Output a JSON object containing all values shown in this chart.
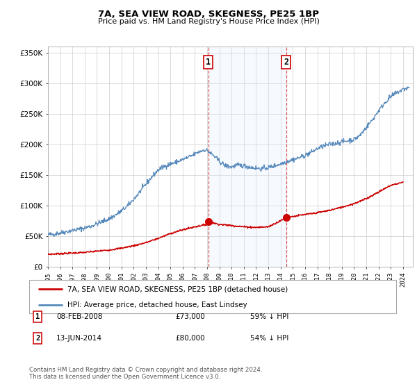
{
  "title": "7A, SEA VIEW ROAD, SKEGNESS, PE25 1BP",
  "subtitle": "Price paid vs. HM Land Registry's House Price Index (HPI)",
  "red_label": "7A, SEA VIEW ROAD, SKEGNESS, PE25 1BP (detached house)",
  "blue_label": "HPI: Average price, detached house, East Lindsey",
  "footnote1": "Contains HM Land Registry data © Crown copyright and database right 2024.",
  "footnote2": "This data is licensed under the Open Government Licence v3.0.",
  "transaction1_label": "08-FEB-2008",
  "transaction1_price": "£73,000",
  "transaction1_pct": "59% ↓ HPI",
  "transaction2_label": "13-JUN-2014",
  "transaction2_price": "£80,000",
  "transaction2_pct": "54% ↓ HPI",
  "marker1_year": 2008.1,
  "marker2_year": 2014.45,
  "marker1_price": 73000,
  "marker2_price": 80000,
  "ylim_max": 360000,
  "xlim_min": 1995,
  "xlim_max": 2024.8,
  "background_color": "#ffffff",
  "grid_color": "#cccccc",
  "red_color": "#cc0000",
  "blue_color": "#5588bb",
  "shade_color": "#ddeeff",
  "years_hpi": [
    1995,
    1995.5,
    1996,
    1996.5,
    1997,
    1997.5,
    1998,
    1998.5,
    1999,
    1999.5,
    2000,
    2000.5,
    2001,
    2001.5,
    2002,
    2002.5,
    2003,
    2003.5,
    2004,
    2004.5,
    2005,
    2005.5,
    2006,
    2006.5,
    2007,
    2007.25,
    2007.5,
    2007.75,
    2008,
    2008.5,
    2009,
    2009.5,
    2010,
    2010.5,
    2011,
    2011.5,
    2012,
    2012.5,
    2013,
    2013.5,
    2014,
    2014.5,
    2015,
    2015.5,
    2016,
    2016.5,
    2017,
    2017.5,
    2018,
    2018.5,
    2019,
    2019.5,
    2020,
    2020.5,
    2021,
    2021.5,
    2022,
    2022.5,
    2023,
    2023.5,
    2024,
    2024.5
  ],
  "hpi_values": [
    52000,
    53000,
    55000,
    57000,
    59000,
    61000,
    63000,
    66000,
    70000,
    74000,
    78000,
    84000,
    91000,
    99000,
    110000,
    122000,
    135000,
    147000,
    158000,
    164000,
    168000,
    171000,
    175000,
    179000,
    184000,
    187000,
    189000,
    191000,
    190000,
    182000,
    172000,
    165000,
    163000,
    166000,
    165000,
    163000,
    161000,
    160000,
    162000,
    165000,
    168000,
    172000,
    175000,
    178000,
    182000,
    187000,
    193000,
    197000,
    200000,
    202000,
    204000,
    206000,
    208000,
    215000,
    228000,
    240000,
    255000,
    268000,
    278000,
    285000,
    290000,
    293000
  ],
  "years_red": [
    1995,
    1996,
    1997,
    1998,
    1999,
    2000,
    2001,
    2002,
    2003,
    2004,
    2005,
    2006,
    2007,
    2008.0,
    2008.1,
    2009,
    2010,
    2011,
    2012,
    2013,
    2014.4,
    2014.5,
    2015,
    2016,
    2017,
    2018,
    2019,
    2020,
    2021,
    2022,
    2023,
    2024
  ],
  "red_values": [
    20000,
    21000,
    22000,
    23000,
    25000,
    27000,
    30000,
    34000,
    39000,
    46000,
    54000,
    60000,
    65000,
    69000,
    73000,
    69000,
    67000,
    65000,
    64000,
    65000,
    79000,
    80000,
    82000,
    85000,
    88000,
    92000,
    97000,
    103000,
    111000,
    122000,
    133000,
    138000
  ]
}
